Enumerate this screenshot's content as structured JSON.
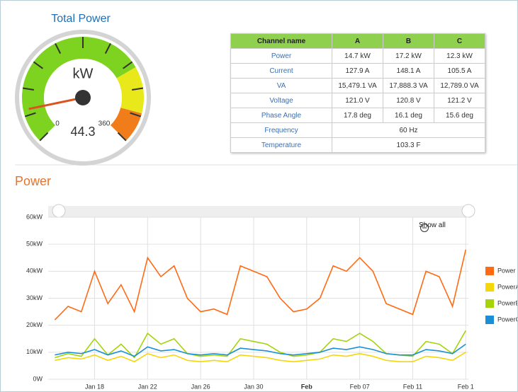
{
  "gauge": {
    "title": "Total Power",
    "unit": "kW",
    "value": 44.3,
    "value_label": "44.3",
    "min": 0,
    "max": 360
  },
  "table": {
    "header": [
      "Channel name",
      "A",
      "B",
      "C"
    ],
    "rows": [
      [
        "Power",
        "14.7 kW",
        "17.2 kW",
        "12.3 kW"
      ],
      [
        "Current",
        "127.9 A",
        "148.1 A",
        "105.5 A"
      ],
      [
        "VA",
        "15,479.1 VA",
        "17,888.3 VA",
        "12,789.0 VA"
      ],
      [
        "Voltage",
        "121.0 V",
        "120.8 V",
        "121.2 V"
      ],
      [
        "Phase Angle",
        "17.8 deg",
        "16.1 deg",
        "15.6 deg"
      ],
      [
        "Frequency",
        "60 Hz"
      ],
      [
        "Temperature",
        "103.3 F"
      ]
    ]
  },
  "section_title": "Power",
  "show_all": "Show all",
  "chart_data": {
    "type": "line",
    "x": [
      15,
      16,
      17,
      18,
      19,
      20,
      21,
      22,
      23,
      24,
      25,
      26,
      27,
      28,
      29,
      30,
      31,
      32,
      33,
      34,
      35,
      36,
      37,
      38,
      39,
      40,
      41,
      42,
      43,
      44,
      45,
      46
    ],
    "xlim": [
      14.5,
      46.2
    ],
    "xticks": [
      {
        "value": 18,
        "label": "Jan 18"
      },
      {
        "value": 22,
        "label": "Jan 22"
      },
      {
        "value": 26,
        "label": "Jan 26"
      },
      {
        "value": 30,
        "label": "Jan 30"
      },
      {
        "value": 34,
        "label": "Feb"
      },
      {
        "value": 38,
        "label": "Feb 07"
      },
      {
        "value": 42,
        "label": "Feb 11"
      },
      {
        "value": 46,
        "label": "Feb 1"
      }
    ],
    "ylim": [
      0,
      60000
    ],
    "yticks": [
      {
        "value": 0,
        "label": "0W"
      },
      {
        "value": 10000,
        "label": "10kW"
      },
      {
        "value": 20000,
        "label": "20kW"
      },
      {
        "value": 30000,
        "label": "30kW"
      },
      {
        "value": 40000,
        "label": "40kW"
      },
      {
        "value": 50000,
        "label": "50kW"
      },
      {
        "value": 60000,
        "label": "60kW"
      }
    ],
    "grid": true,
    "legend": "right",
    "series": [
      {
        "name": "Power",
        "color": "#ff6a13",
        "values": [
          22000,
          27000,
          25000,
          40000,
          28000,
          35000,
          25000,
          45000,
          38000,
          42000,
          30000,
          25000,
          26000,
          24000,
          42000,
          40000,
          38000,
          30000,
          25000,
          26000,
          30000,
          42000,
          40000,
          45000,
          40000,
          28000,
          26000,
          24000,
          40000,
          38000,
          27000,
          48000
        ]
      },
      {
        "name": "PowerA",
        "color": "#f5d60a",
        "values": [
          7000,
          8000,
          7500,
          9000,
          7000,
          8500,
          6500,
          9500,
          8000,
          9000,
          7000,
          6500,
          7000,
          6500,
          9000,
          8500,
          8000,
          7000,
          6500,
          7000,
          7500,
          9000,
          8500,
          9500,
          8500,
          7000,
          6500,
          6500,
          8500,
          8000,
          7000,
          10000
        ]
      },
      {
        "name": "PowerB",
        "color": "#a6d40a",
        "values": [
          8000,
          9500,
          8500,
          15000,
          9000,
          13000,
          8000,
          17000,
          13000,
          15000,
          9500,
          8500,
          9000,
          8500,
          15000,
          14000,
          13000,
          10000,
          8500,
          9000,
          10000,
          15000,
          14000,
          17000,
          14000,
          9500,
          9000,
          8500,
          14000,
          13000,
          9500,
          18000
        ]
      },
      {
        "name": "PowerC",
        "color": "#1a8fd6",
        "values": [
          9000,
          10000,
          9500,
          11000,
          9000,
          10500,
          8500,
          12000,
          10500,
          11000,
          9500,
          9000,
          9500,
          9000,
          11500,
          11000,
          10500,
          9500,
          9000,
          9500,
          10000,
          11500,
          11000,
          12000,
          11000,
          9500,
          9000,
          9000,
          11000,
          10500,
          9500,
          13000
        ]
      }
    ]
  }
}
